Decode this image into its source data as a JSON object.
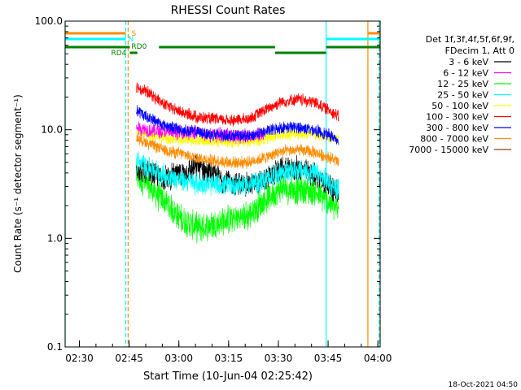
{
  "chart_data": {
    "type": "line",
    "title": "RHESSI Count Rates",
    "xlabel": "Start Time (10-Jun-04 02:25:42)",
    "ylabel": "Count Rate (s⁻¹ detector segment⁻¹)",
    "yscale": "log",
    "ylim": [
      0.1,
      100
    ],
    "xlim_minutes": [
      0,
      95
    ],
    "x_ticks": [
      {
        "label": "02:30",
        "t": 4.3
      },
      {
        "label": "02:45",
        "t": 19.3
      },
      {
        "label": "03:00",
        "t": 34.3
      },
      {
        "label": "03:15",
        "t": 49.3
      },
      {
        "label": "03:30",
        "t": 64.3
      },
      {
        "label": "03:45",
        "t": 79.3
      },
      {
        "label": "04:00",
        "t": 94.3
      }
    ],
    "y_ticks": [
      {
        "label": "0.1",
        "v": 0.1
      },
      {
        "label": "1.0",
        "v": 1.0
      },
      {
        "label": "10.0",
        "v": 10.0
      },
      {
        "label": "100.0",
        "v": 100.0
      }
    ],
    "legend_header": [
      "Det 1f,3f,4f,5f,6f,9f,",
      "FDecim 1, Att 0"
    ],
    "series": [
      {
        "name": "3 - 6 keV",
        "color": "#000000",
        "t": [
          21.5,
          25,
          30,
          35,
          40,
          45,
          50,
          55,
          60,
          65,
          70,
          75,
          80,
          82.5
        ],
        "values": [
          4.5,
          4.0,
          3.6,
          3.9,
          4.6,
          3.8,
          3.2,
          3.1,
          3.4,
          4.3,
          4.4,
          3.9,
          3.0,
          2.6
        ]
      },
      {
        "name": "6 - 12 keV",
        "color": "#ff00ff",
        "t": [
          21.5,
          25,
          30,
          35,
          40,
          45,
          50,
          55,
          60
        ],
        "values": [
          10.5,
          10.0,
          9.5,
          9.5,
          9.3,
          9.0,
          8.8,
          8.8,
          9.0
        ]
      },
      {
        "name": "12 - 25 keV",
        "color": "#00ff00",
        "t": [
          21.5,
          25,
          30,
          35,
          40,
          45,
          50,
          55,
          60,
          65,
          70,
          75,
          80,
          82.5
        ],
        "values": [
          3.8,
          3.0,
          2.2,
          1.5,
          1.25,
          1.35,
          1.5,
          1.6,
          2.2,
          2.9,
          2.8,
          2.7,
          2.1,
          1.8
        ]
      },
      {
        "name": "25 - 50 keV",
        "color": "#00ffff",
        "t": [
          21.5,
          25,
          30,
          35,
          40,
          45,
          50,
          55,
          60,
          65,
          70,
          75,
          80,
          82.5
        ],
        "values": [
          5.2,
          4.5,
          3.8,
          3.4,
          3.2,
          3.1,
          3.1,
          3.1,
          3.4,
          4.1,
          4.2,
          4.0,
          3.2,
          2.8
        ]
      },
      {
        "name": "50 - 100 keV",
        "color": "#ffff00",
        "t": [
          21.5,
          25,
          30,
          35,
          40,
          45,
          50,
          55,
          60,
          65,
          70,
          75,
          80,
          82.5
        ],
        "values": [
          9.5,
          9.0,
          8.5,
          8.2,
          8.0,
          7.8,
          7.8,
          7.8,
          8.2,
          9.0,
          9.2,
          9.0,
          8.5,
          8.2
        ]
      },
      {
        "name": "100 - 300 keV",
        "color": "#ff0000",
        "t": [
          21.5,
          25,
          30,
          35,
          40,
          45,
          50,
          55,
          60,
          65,
          70,
          75,
          80,
          82.5
        ],
        "values": [
          25,
          22,
          17,
          14.5,
          13,
          12.5,
          12.2,
          12.5,
          15,
          18,
          19,
          18,
          15,
          13
        ]
      },
      {
        "name": "300 - 800 keV",
        "color": "#0000ff",
        "t": [
          21.5,
          25,
          30,
          35,
          40,
          45,
          50,
          55,
          60,
          65,
          70,
          75,
          80,
          82.5
        ],
        "values": [
          15,
          13,
          11,
          10,
          9.5,
          9,
          8.8,
          8.7,
          9.5,
          10.5,
          10.5,
          10,
          8.8,
          8.0
        ]
      },
      {
        "name": "800 - 7000 keV",
        "color": "#ff8c00",
        "t": [
          21.5,
          25,
          30,
          35,
          40,
          45,
          50,
          55,
          60,
          65,
          70,
          75,
          80,
          82.5
        ],
        "values": [
          8.5,
          7.5,
          6.5,
          6.0,
          5.5,
          5.2,
          5.0,
          5.0,
          5.5,
          6.3,
          6.5,
          6.2,
          5.5,
          5.0
        ]
      },
      {
        "name": "7000 - 15000 keV",
        "color": "#8b4513",
        "t": [],
        "values": []
      }
    ],
    "vertical_lines": [
      {
        "t": 0,
        "color": "#00ffff",
        "style": "solid"
      },
      {
        "t": 18.3,
        "color": "#00ffff",
        "style": "dashed"
      },
      {
        "t": 19.0,
        "color": "#ff8c00",
        "style": "dashed"
      },
      {
        "t": 78.7,
        "color": "#00ffff",
        "style": "solid"
      },
      {
        "t": 91.3,
        "color": "#ff8c00",
        "style": "solid"
      },
      {
        "t": 94.7,
        "color": "#00ffff",
        "style": "dashed"
      },
      {
        "t": 95,
        "color": "#ff8c00",
        "style": "dashed"
      }
    ],
    "flag_bars": [
      {
        "label": "S",
        "color": "#ff8c00",
        "level": 3,
        "segments": [
          [
            0,
            18.3
          ],
          [
            91.2,
            95
          ]
        ]
      },
      {
        "label": "N",
        "color": "#00ffff",
        "level": 2,
        "segments": [
          [
            0,
            18.3
          ],
          [
            78.7,
            95
          ]
        ]
      },
      {
        "label": "RD0",
        "color": "#008000",
        "level": 1,
        "segments": [
          [
            0,
            19.5
          ],
          [
            28.3,
            63.3
          ],
          [
            78.7,
            95
          ]
        ]
      },
      {
        "label": "RD4",
        "color": "#008000",
        "level": 0,
        "segments": [
          [
            19.5,
            21.8
          ],
          [
            63.3,
            78.7
          ]
        ]
      }
    ],
    "timestamp": "18-Oct-2021 04:50"
  }
}
